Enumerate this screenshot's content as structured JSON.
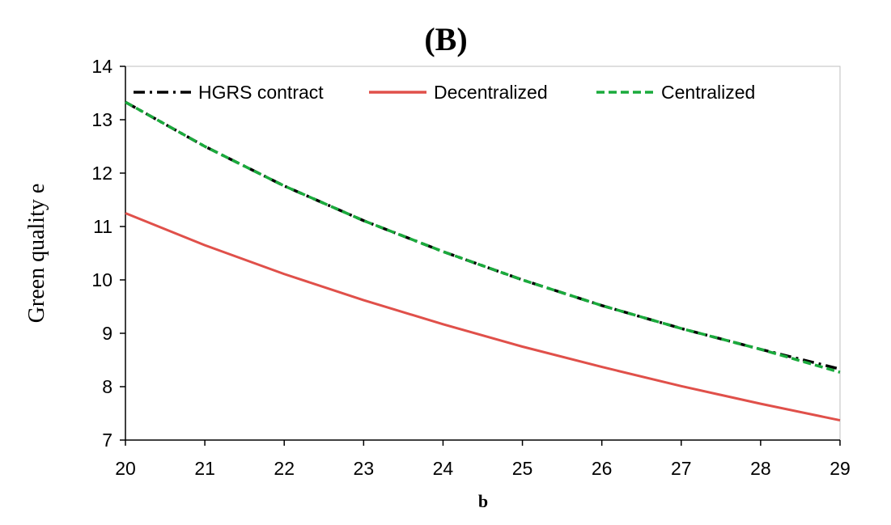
{
  "chart_data": {
    "type": "line",
    "title": "(B)",
    "xlabel": "b",
    "ylabel": "Green quality e",
    "xlim": [
      20,
      29
    ],
    "ylim": [
      7,
      14
    ],
    "x": [
      20,
      21,
      22,
      23,
      24,
      25,
      26,
      27,
      28,
      29
    ],
    "x_ticks": [
      "20",
      "21",
      "22",
      "23",
      "24",
      "25",
      "26",
      "27",
      "28",
      "29"
    ],
    "y_ticks": [
      "7",
      "8",
      "9",
      "10",
      "11",
      "12",
      "13",
      "14"
    ],
    "grid": false,
    "legend_position": "top",
    "series": [
      {
        "name": "HGRS contract",
        "color": "#000000",
        "style": "dash-dot",
        "values": [
          13.33,
          12.5,
          11.76,
          11.11,
          10.53,
          10.0,
          9.52,
          9.09,
          8.7,
          8.33
        ]
      },
      {
        "name": "Decentralized",
        "color": "#e0504a",
        "style": "solid",
        "values": [
          11.25,
          10.65,
          10.11,
          9.62,
          9.17,
          8.75,
          8.37,
          8.01,
          7.68,
          7.37
        ]
      },
      {
        "name": "Centralized",
        "color": "#1aaa3c",
        "style": "dashed",
        "values": [
          13.33,
          12.5,
          11.76,
          11.11,
          10.53,
          10.0,
          9.52,
          9.09,
          8.7,
          8.27
        ]
      }
    ]
  }
}
